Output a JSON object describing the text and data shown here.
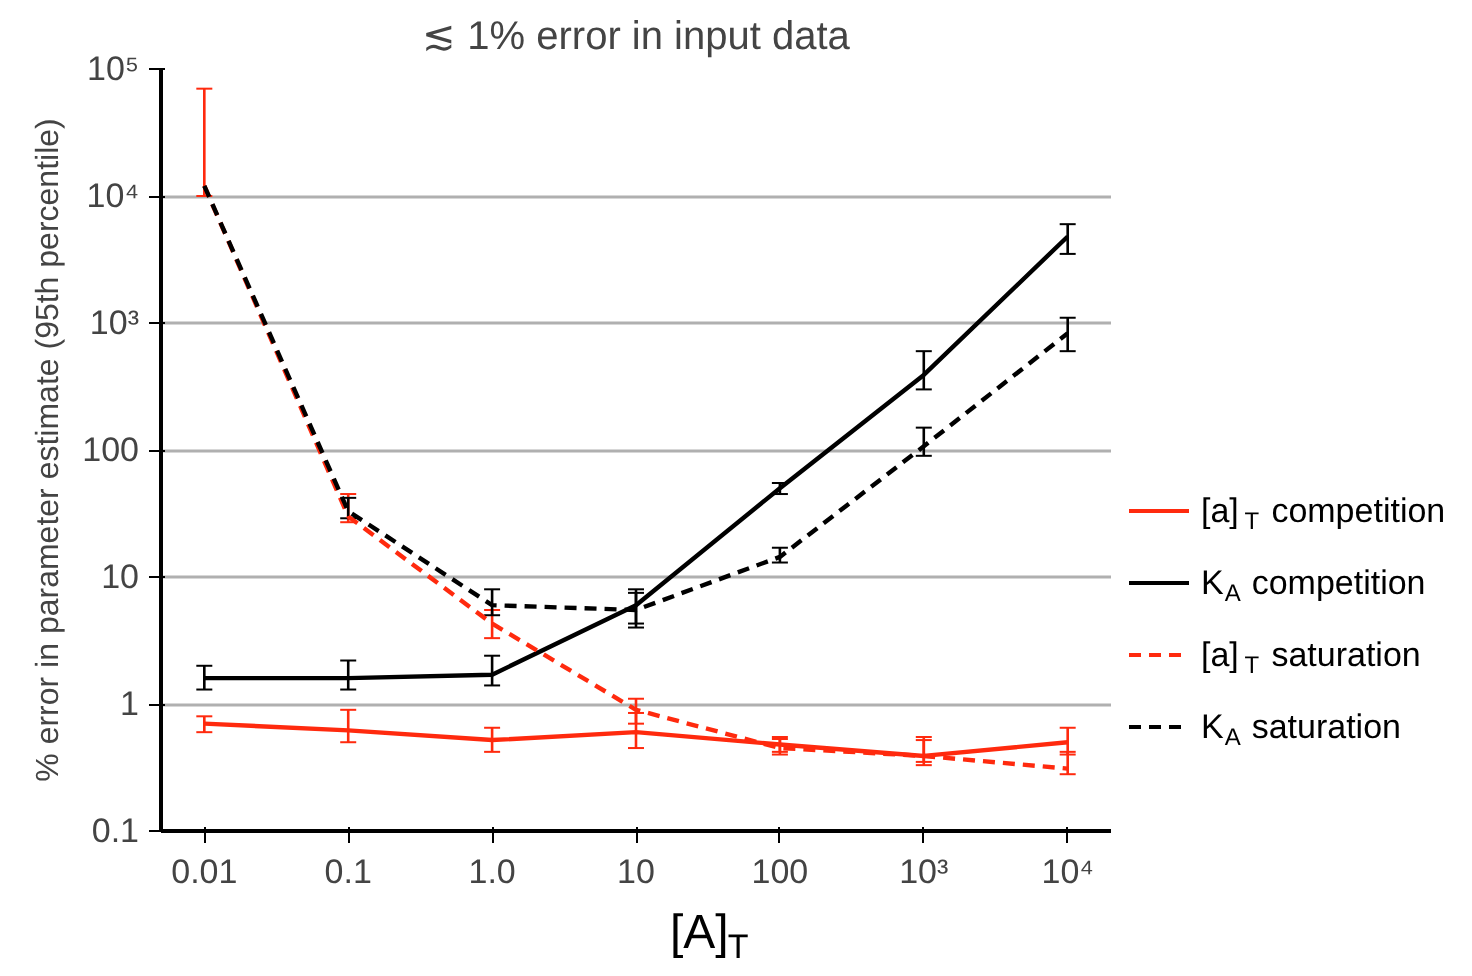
{
  "chart_data": {
    "type": "line",
    "title": "≲ 1% error in input data",
    "xlabel": "[A]$_{T}$",
    "ylabel": "% error in parameter estimate (95th percentile)",
    "x": [
      0.01,
      0.1,
      1,
      10,
      100,
      1000,
      10000
    ],
    "log": "xy",
    "grid": "y",
    "legend": "right",
    "xlim": [
      0.005,
      20000
    ],
    "xticks": [
      {
        "value": 0.01,
        "label": "0.01"
      },
      {
        "value": 0.1,
        "label": "0.1"
      },
      {
        "value": 1,
        "label": "1.0"
      },
      {
        "value": 10,
        "label": "10"
      },
      {
        "value": 100,
        "label": "100"
      },
      {
        "value": 1000,
        "label": "10³"
      },
      {
        "value": 10000,
        "label": "10⁴"
      }
    ],
    "ylim": [
      0.1,
      100000
    ],
    "yticks": [
      {
        "value": 0.1,
        "label": "0.1"
      },
      {
        "value": 1,
        "label": "1"
      },
      {
        "value": 10,
        "label": "10"
      },
      {
        "value": 100,
        "label": "100"
      },
      {
        "value": 1000,
        "label": "10³"
      },
      {
        "value": 10000,
        "label": "10⁴"
      },
      {
        "value": 100000,
        "label": "10⁵"
      }
    ],
    "series": [
      {
        "name": "[a]$_{T}$ competition",
        "color": "#ff2a0e",
        "line_style": "solid",
        "values": [
          0.7,
          0.62,
          0.52,
          0.6,
          0.48,
          0.39,
          0.5
        ],
        "errors": [
          [
            0.6,
            0.8
          ],
          [
            0.5,
            0.9
          ],
          [
            0.42,
            0.65
          ],
          [
            0.45,
            0.85
          ],
          [
            0.42,
            0.55
          ],
          [
            0.35,
            0.55
          ],
          [
            0.4,
            0.65
          ]
        ]
      },
      {
        "name": "K$_{A}$ competition",
        "color": "#000000",
        "line_style": "solid",
        "values": [
          1.6,
          1.6,
          1.7,
          6,
          50,
          390,
          4800
        ],
        "errors": [
          [
            1.3,
            2.0
          ],
          [
            1.3,
            2.2
          ],
          [
            1.4,
            2.4
          ],
          [
            4,
            8
          ],
          [
            45,
            55
          ],
          [
            300,
            600
          ],
          [
            3500,
            6000
          ]
        ]
      },
      {
        "name": "[a]$_{T}$ saturation",
        "color": "#ff2a0e",
        "line_style": "dashed",
        "values": [
          12000,
          30,
          4.3,
          0.9,
          0.45,
          0.39,
          0.31
        ],
        "errors": [
          [
            10000,
            70000
          ],
          [
            27,
            45
          ],
          [
            3.3,
            5.5
          ],
          [
            0.7,
            1.1
          ],
          [
            0.4,
            0.53
          ],
          [
            0.33,
            0.52
          ],
          [
            0.28,
            0.42
          ]
        ]
      },
      {
        "name": "K$_{A}$ saturation",
        "color": "#000000",
        "line_style": "dashed",
        "values": [
          12000,
          33,
          6,
          5.5,
          14.4,
          107,
          830
        ],
        "errors": [
          null,
          [
            29,
            42
          ],
          [
            5,
            8
          ],
          [
            4.3,
            7.5
          ],
          [
            13,
            17
          ],
          [
            90,
            150
          ],
          [
            600,
            1100
          ]
        ]
      }
    ],
    "marker": "none"
  }
}
